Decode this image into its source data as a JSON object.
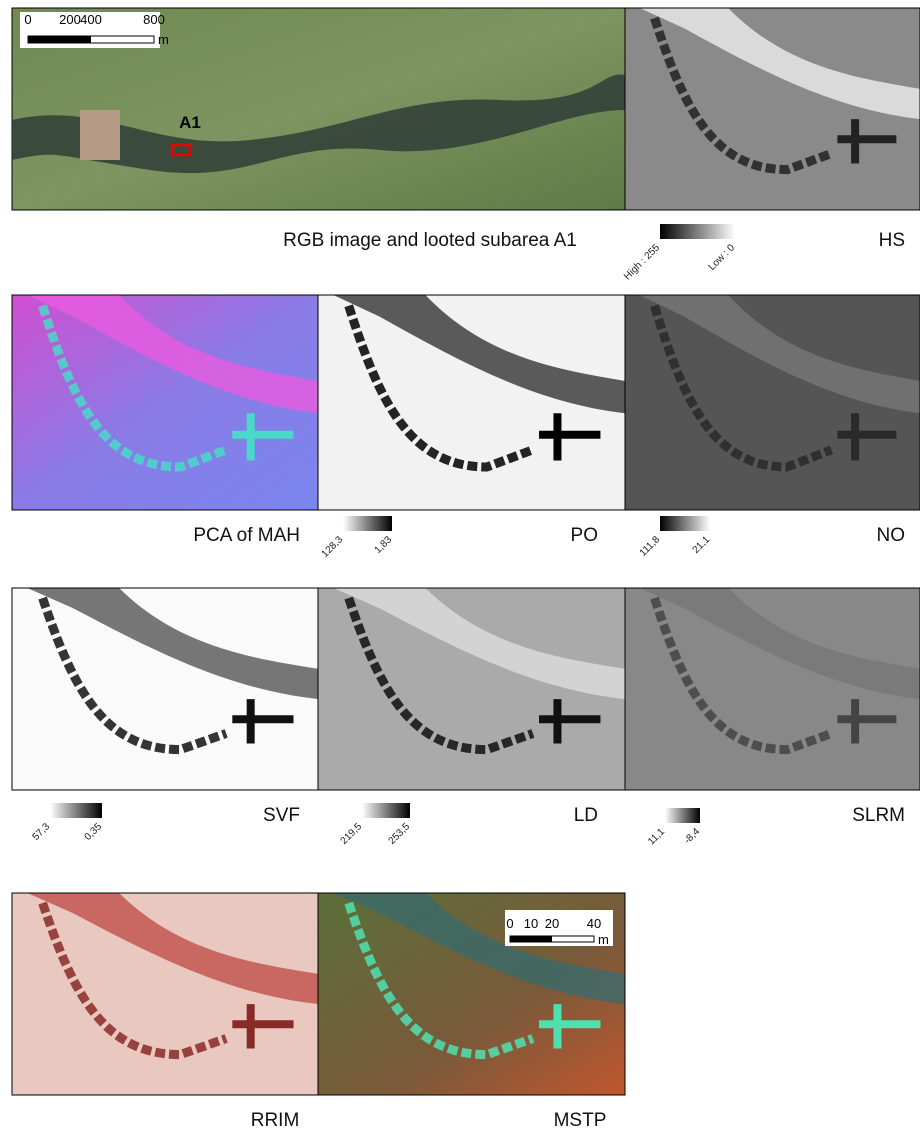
{
  "rgb": {
    "caption": "RGB image and looted subarea A1",
    "site": "A1",
    "scale": {
      "ticks": [
        "0",
        "200",
        "400",
        "800"
      ],
      "unit": "m"
    }
  },
  "panels": [
    {
      "label": "HS",
      "legend": [
        "High : 255",
        "Low : 0"
      ]
    },
    {
      "label": "PCA of MAH"
    },
    {
      "label": "PO",
      "legend": [
        "128,3",
        "1,83"
      ]
    },
    {
      "label": "NO",
      "legend": [
        "111,8",
        "21,1"
      ]
    },
    {
      "label": "SVF",
      "legend": [
        "57,3",
        "0,35"
      ]
    },
    {
      "label": "LD",
      "legend": [
        "219,5",
        "253,5"
      ]
    },
    {
      "label": "SLRM",
      "legend": [
        "11,1",
        "-8,4"
      ]
    },
    {
      "label": "RRIM"
    },
    {
      "label": "MSTP",
      "scale": {
        "ticks": [
          "0",
          "10",
          "20",
          "40"
        ],
        "unit": "m"
      }
    }
  ]
}
